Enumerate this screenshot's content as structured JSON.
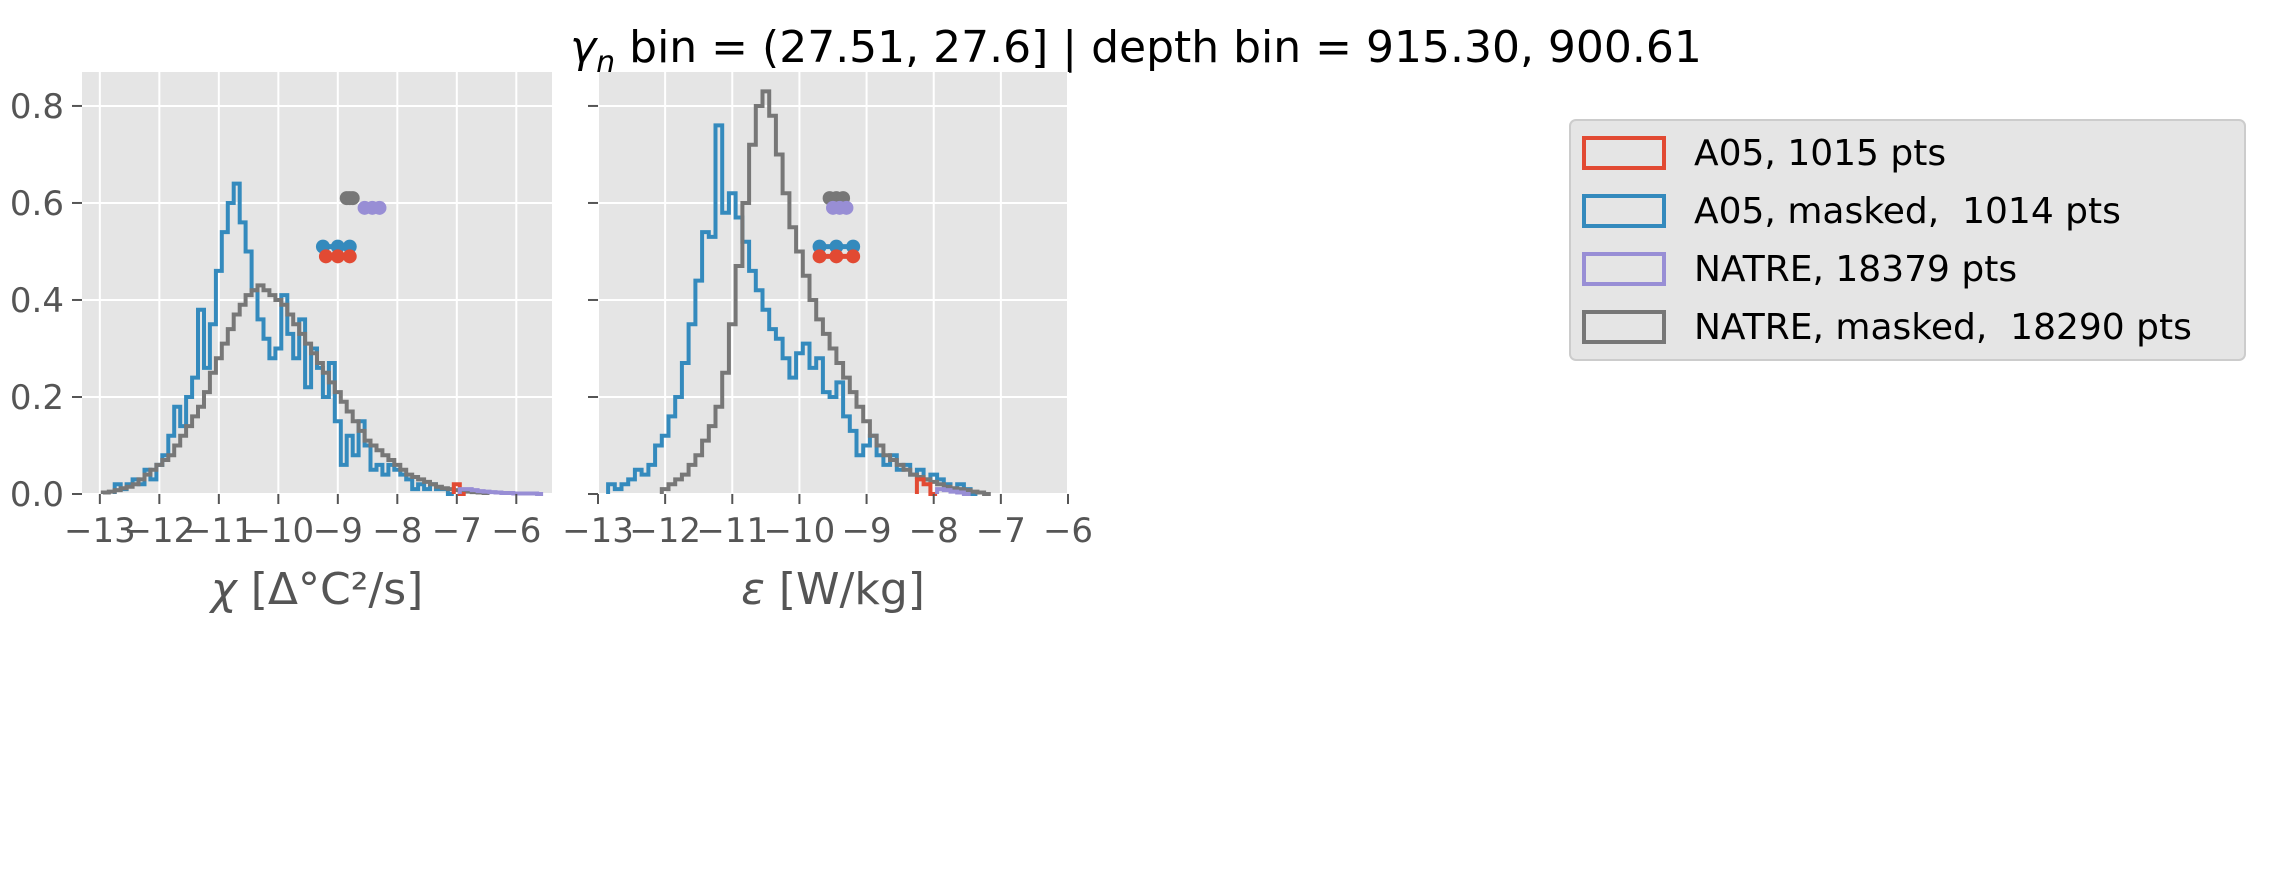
{
  "figure": {
    "title": "bin = (27.51, 27.6] | depth bin = 915.30, 900.61",
    "title_symbol": "γ",
    "title_symbol_subscript": "n"
  },
  "colors": {
    "A05": "#E24A33",
    "A05_masked": "#348ABD",
    "NATRE": "#988ED5",
    "NATRE_masked": "#777777",
    "axes_bg": "#E5E5E5",
    "grid": "#FFFFFF"
  },
  "legend": {
    "placement": "outside-upper-right",
    "entries": [
      {
        "label": "A05, 1015 pts",
        "color": "#E24A33"
      },
      {
        "label": "A05, masked,  1014 pts",
        "color": "#348ABD"
      },
      {
        "label": "NATRE, 18379 pts",
        "color": "#988ED5"
      },
      {
        "label": "NATRE, masked,  18290 pts",
        "color": "#777777"
      }
    ]
  },
  "chart_data": [
    {
      "type": "line",
      "panel": "chi",
      "xlabel_symbol": "χ",
      "xlabel_unit": "[Δ°C²/s]",
      "xlim": [
        -13.3,
        -5.4
      ],
      "ylim": [
        0,
        0.87
      ],
      "xticks": [
        "−13",
        "−12",
        "−11",
        "−10",
        "−9",
        "−8",
        "−7",
        "−6"
      ],
      "xtick_values": [
        -13,
        -12,
        -11,
        -10,
        -9,
        -8,
        -7,
        -6
      ],
      "yticks": [
        "0.0",
        "0.2",
        "0.4",
        "0.6",
        "0.8"
      ],
      "ytick_values": [
        0,
        0.2,
        0.4,
        0.6,
        0.8
      ],
      "grid": true,
      "series": [
        {
          "name": "A05, masked,  1014 pts",
          "style": "step",
          "x": [
            -12.7,
            -12.6,
            -12.5,
            -12.4,
            -12.3,
            -12.2,
            -12.1,
            -12.0,
            -11.9,
            -11.8,
            -11.7,
            -11.6,
            -11.5,
            -11.4,
            -11.3,
            -11.2,
            -11.1,
            -11.0,
            -10.9,
            -10.8,
            -10.7,
            -10.6,
            -10.5,
            -10.4,
            -10.3,
            -10.2,
            -10.1,
            -10.0,
            -9.9,
            -9.8,
            -9.7,
            -9.6,
            -9.5,
            -9.4,
            -9.3,
            -9.2,
            -9.1,
            -9.0,
            -8.9,
            -8.8,
            -8.7,
            -8.6,
            -8.5,
            -8.4,
            -8.3,
            -8.2,
            -8.1,
            -8.0,
            -7.9,
            -7.8,
            -7.7,
            -7.6,
            -7.5,
            -7.4,
            -7.3,
            -7.2,
            -7.1
          ],
          "y": [
            0.02,
            0.01,
            0.02,
            0.03,
            0.02,
            0.05,
            0.03,
            0.06,
            0.08,
            0.12,
            0.18,
            0.14,
            0.2,
            0.24,
            0.38,
            0.26,
            0.35,
            0.46,
            0.54,
            0.6,
            0.64,
            0.56,
            0.5,
            0.42,
            0.36,
            0.32,
            0.28,
            0.3,
            0.41,
            0.33,
            0.28,
            0.36,
            0.22,
            0.3,
            0.26,
            0.2,
            0.27,
            0.15,
            0.06,
            0.12,
            0.08,
            0.15,
            0.1,
            0.05,
            0.06,
            0.04,
            0.06,
            0.05,
            0.04,
            0.03,
            0.01,
            0.02,
            0.01,
            0.02,
            0.01,
            0.01,
            0.0
          ]
        },
        {
          "name": "NATRE, masked,  18290 pts",
          "style": "step",
          "x": [
            -12.9,
            -12.8,
            -12.7,
            -12.6,
            -12.5,
            -12.4,
            -12.3,
            -12.2,
            -12.1,
            -12.0,
            -11.9,
            -11.8,
            -11.7,
            -11.6,
            -11.5,
            -11.4,
            -11.3,
            -11.2,
            -11.1,
            -11.0,
            -10.9,
            -10.8,
            -10.7,
            -10.6,
            -10.5,
            -10.4,
            -10.3,
            -10.2,
            -10.1,
            -10.0,
            -9.9,
            -9.8,
            -9.7,
            -9.6,
            -9.5,
            -9.4,
            -9.3,
            -9.2,
            -9.1,
            -9.0,
            -8.9,
            -8.8,
            -8.7,
            -8.6,
            -8.5,
            -8.4,
            -8.3,
            -8.2,
            -8.1,
            -8.0,
            -7.9,
            -7.8,
            -7.7,
            -7.6,
            -7.5,
            -7.4,
            -7.3,
            -7.2,
            -7.1,
            -7.0,
            -6.9,
            -6.8,
            -6.7,
            -6.6,
            -6.5
          ],
          "y": [
            0.003,
            0.005,
            0.008,
            0.012,
            0.015,
            0.02,
            0.03,
            0.04,
            0.05,
            0.06,
            0.07,
            0.08,
            0.1,
            0.12,
            0.14,
            0.16,
            0.18,
            0.21,
            0.25,
            0.28,
            0.31,
            0.34,
            0.37,
            0.39,
            0.41,
            0.42,
            0.43,
            0.42,
            0.41,
            0.4,
            0.39,
            0.37,
            0.35,
            0.33,
            0.31,
            0.29,
            0.27,
            0.25,
            0.23,
            0.21,
            0.19,
            0.17,
            0.15,
            0.13,
            0.11,
            0.1,
            0.09,
            0.08,
            0.07,
            0.06,
            0.05,
            0.04,
            0.035,
            0.03,
            0.025,
            0.02,
            0.015,
            0.012,
            0.01,
            0.008,
            0.006,
            0.005,
            0.004,
            0.003,
            0.002
          ]
        },
        {
          "name": "A05, 1015 pts",
          "style": "step",
          "x": [
            -7.0,
            -6.9
          ],
          "y": [
            0.02,
            0.0
          ]
        },
        {
          "name": "NATRE, 18379 pts",
          "style": "step",
          "x": [
            -6.9,
            -6.8,
            -6.7,
            -6.6,
            -6.5,
            -6.4,
            -6.3,
            -6.2,
            -6.1,
            -6.0,
            -5.9,
            -5.8,
            -5.7,
            -5.6
          ],
          "y": [
            0.01,
            0.01,
            0.008,
            0.006,
            0.005,
            0.004,
            0.003,
            0.002,
            0.002,
            0.001,
            0.001,
            0.001,
            0.001,
            0.0
          ]
        }
      ],
      "markers": [
        {
          "name": "NATRE, masked,  18290 pts",
          "x": [
            -8.85,
            -8.8,
            -8.75
          ],
          "y": 0.61
        },
        {
          "name": "NATRE, 18379 pts",
          "x": [
            -8.55,
            -8.42,
            -8.3
          ],
          "y": 0.59
        },
        {
          "name": "A05, masked,  1014 pts",
          "x": [
            -9.25,
            -9.0,
            -8.8
          ],
          "y": 0.51
        },
        {
          "name": "A05, 1015 pts",
          "x": [
            -9.2,
            -9.0,
            -8.8
          ],
          "y": 0.49
        }
      ]
    },
    {
      "type": "line",
      "panel": "epsilon",
      "xlabel_symbol": "ε",
      "xlabel_unit": "[W/kg]",
      "xlim": [
        -13,
        -6
      ],
      "ylim": [
        0,
        0.87
      ],
      "xticks": [
        "−13",
        "−12",
        "−11",
        "−10",
        "−9",
        "−8",
        "−7",
        "−6"
      ],
      "xtick_values": [
        -13,
        -12,
        -11,
        -10,
        -9,
        -8,
        -7,
        -6
      ],
      "yticks": [
        "0.0",
        "0.2",
        "0.4",
        "0.6",
        "0.8"
      ],
      "ytick_values": [
        0,
        0.2,
        0.4,
        0.6,
        0.8
      ],
      "grid": true,
      "series": [
        {
          "name": "A05, masked,  1014 pts",
          "style": "step",
          "x": [
            -12.8,
            -12.7,
            -12.6,
            -12.5,
            -12.4,
            -12.3,
            -12.2,
            -12.1,
            -12.0,
            -11.9,
            -11.8,
            -11.7,
            -11.6,
            -11.5,
            -11.4,
            -11.3,
            -11.2,
            -11.1,
            -11.0,
            -10.9,
            -10.8,
            -10.7,
            -10.6,
            -10.5,
            -10.4,
            -10.3,
            -10.2,
            -10.1,
            -10.0,
            -9.9,
            -9.8,
            -9.7,
            -9.6,
            -9.5,
            -9.4,
            -9.3,
            -9.2,
            -9.1,
            -9.0,
            -8.9,
            -8.8,
            -8.7,
            -8.6,
            -8.5,
            -8.4,
            -8.3,
            -8.2,
            -8.1,
            -8.0,
            -7.9,
            -7.8,
            -7.7,
            -7.6,
            -7.5,
            -7.4
          ],
          "y": [
            0.02,
            0.01,
            0.02,
            0.03,
            0.05,
            0.04,
            0.06,
            0.1,
            0.12,
            0.16,
            0.2,
            0.27,
            0.35,
            0.44,
            0.54,
            0.53,
            0.76,
            0.58,
            0.62,
            0.57,
            0.52,
            0.46,
            0.42,
            0.38,
            0.34,
            0.32,
            0.28,
            0.24,
            0.29,
            0.31,
            0.26,
            0.28,
            0.21,
            0.2,
            0.23,
            0.16,
            0.13,
            0.08,
            0.1,
            0.12,
            0.08,
            0.06,
            0.08,
            0.05,
            0.06,
            0.04,
            0.05,
            0.03,
            0.04,
            0.03,
            0.02,
            0.01,
            0.02,
            0.01,
            0.0
          ]
        },
        {
          "name": "NATRE, masked,  18290 pts",
          "style": "step",
          "x": [
            -12.0,
            -11.9,
            -11.8,
            -11.7,
            -11.6,
            -11.5,
            -11.4,
            -11.3,
            -11.2,
            -11.1,
            -11.0,
            -10.9,
            -10.8,
            -10.7,
            -10.6,
            -10.5,
            -10.4,
            -10.3,
            -10.2,
            -10.1,
            -10.0,
            -9.9,
            -9.8,
            -9.7,
            -9.6,
            -9.5,
            -9.4,
            -9.3,
            -9.2,
            -9.1,
            -9.0,
            -8.9,
            -8.8,
            -8.7,
            -8.6,
            -8.5,
            -8.4,
            -8.3,
            -8.2,
            -8.1,
            -8.0,
            -7.9,
            -7.8,
            -7.7,
            -7.6,
            -7.5,
            -7.4,
            -7.3,
            -7.2
          ],
          "y": [
            0.01,
            0.02,
            0.03,
            0.04,
            0.06,
            0.08,
            0.11,
            0.14,
            0.18,
            0.25,
            0.35,
            0.47,
            0.6,
            0.72,
            0.8,
            0.83,
            0.78,
            0.7,
            0.62,
            0.55,
            0.5,
            0.45,
            0.4,
            0.36,
            0.33,
            0.3,
            0.27,
            0.24,
            0.21,
            0.18,
            0.15,
            0.12,
            0.1,
            0.08,
            0.07,
            0.06,
            0.05,
            0.04,
            0.035,
            0.03,
            0.025,
            0.02,
            0.015,
            0.012,
            0.01,
            0.008,
            0.005,
            0.003,
            0.0
          ]
        },
        {
          "name": "A05, 1015 pts",
          "style": "step",
          "x": [
            -8.2,
            -8.1,
            -8.0
          ],
          "y": [
            0.03,
            0.02,
            0.0
          ]
        },
        {
          "name": "NATRE, 18379 pts",
          "style": "step",
          "x": [
            -7.9,
            -7.8,
            -7.7,
            -7.6,
            -7.5
          ],
          "y": [
            0.01,
            0.008,
            0.005,
            0.003,
            0.0
          ]
        }
      ],
      "markers": [
        {
          "name": "NATRE, masked,  18290 pts",
          "x": [
            -9.55,
            -9.45,
            -9.35
          ],
          "y": 0.61
        },
        {
          "name": "NATRE, 18379 pts",
          "x": [
            -9.5,
            -9.4,
            -9.3
          ],
          "y": 0.59
        },
        {
          "name": "A05, masked,  1014 pts",
          "x": [
            -9.7,
            -9.45,
            -9.2
          ],
          "y": 0.51
        },
        {
          "name": "A05, 1015 pts",
          "x": [
            -9.7,
            -9.45,
            -9.2
          ],
          "y": 0.49
        }
      ]
    }
  ]
}
